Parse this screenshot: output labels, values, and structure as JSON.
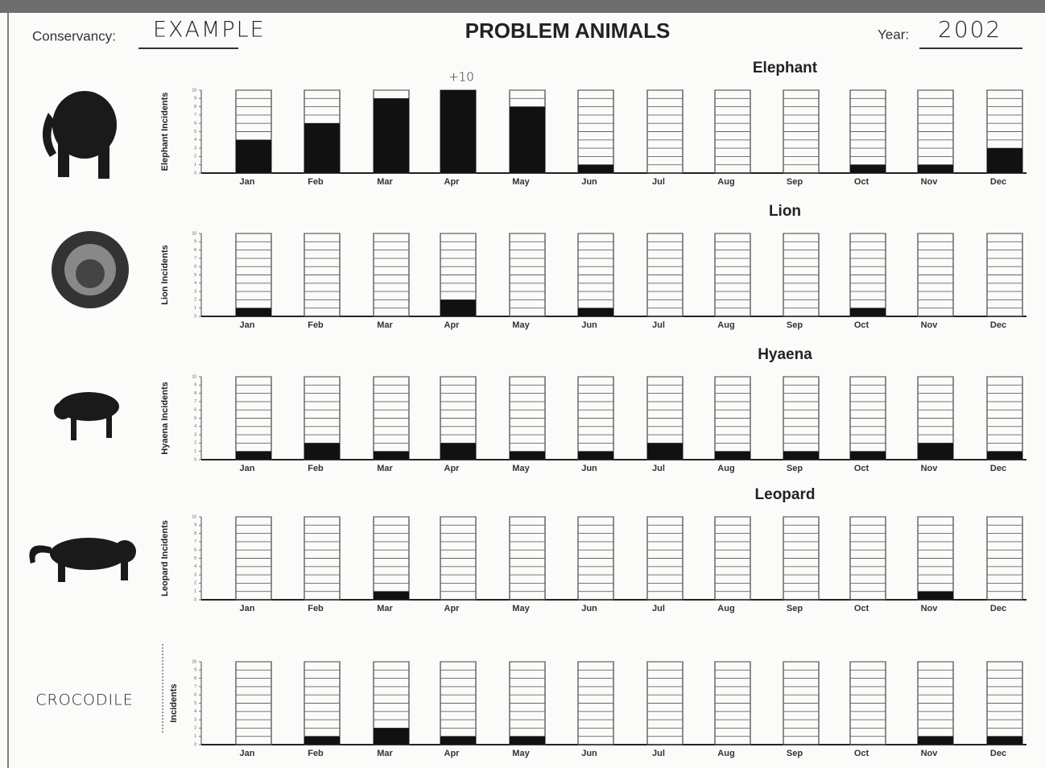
{
  "header": {
    "conservancy_label": "Conservancy:",
    "conservancy": "EXAMPLE",
    "title": "PROBLEM ANIMALS",
    "year_label": "Year:",
    "year": "2002"
  },
  "chart_data": [
    {
      "type": "bar",
      "title": "Elephant",
      "y_label": "Elephant Incidents",
      "categories": [
        "Jan",
        "Feb",
        "Mar",
        "Apr",
        "May",
        "Jun",
        "Jul",
        "Aug",
        "Sep",
        "Oct",
        "Nov",
        "Dec"
      ],
      "values": [
        4,
        6,
        9,
        10,
        8,
        1,
        0,
        0,
        0,
        1,
        1,
        3
      ],
      "color": "#111111",
      "ylim": [
        0,
        10
      ],
      "yticks": [
        0,
        1,
        2,
        3,
        4,
        5,
        6,
        7,
        8,
        9,
        10
      ],
      "grid": true,
      "annotations": [
        {
          "text": "+10",
          "category": "Apr"
        }
      ]
    },
    {
      "type": "bar",
      "title": "Lion",
      "y_label": "Lion Incidents",
      "categories": [
        "Jan",
        "Feb",
        "Mar",
        "Apr",
        "May",
        "Jun",
        "Jul",
        "Aug",
        "Sep",
        "Oct",
        "Nov",
        "Dec"
      ],
      "values": [
        1,
        0,
        0,
        2,
        0,
        1,
        0,
        0,
        0,
        1,
        0,
        0
      ],
      "color": "#111111",
      "ylim": [
        0,
        10
      ],
      "yticks": [
        0,
        1,
        2,
        3,
        4,
        5,
        6,
        7,
        8,
        9,
        10
      ],
      "grid": true
    },
    {
      "type": "bar",
      "title": "Hyaena",
      "y_label": "Hyaena Incidents",
      "categories": [
        "Jan",
        "Feb",
        "Mar",
        "Apr",
        "May",
        "Jun",
        "Jul",
        "Aug",
        "Sep",
        "Oct",
        "Nov",
        "Dec"
      ],
      "values": [
        1,
        2,
        1,
        2,
        1,
        1,
        2,
        1,
        1,
        1,
        2,
        1
      ],
      "color": "#111111",
      "ylim": [
        0,
        10
      ],
      "yticks": [
        0,
        1,
        2,
        3,
        4,
        5,
        6,
        7,
        8,
        9,
        10
      ],
      "grid": true
    },
    {
      "type": "bar",
      "title": "Leopard",
      "y_label": "Leopard Incidents",
      "categories": [
        "Jan",
        "Feb",
        "Mar",
        "Apr",
        "May",
        "Jun",
        "Jul",
        "Aug",
        "Sep",
        "Oct",
        "Nov",
        "Dec"
      ],
      "values": [
        0,
        0,
        1,
        0,
        0,
        0,
        0,
        0,
        0,
        0,
        1,
        0
      ],
      "color": "#111111",
      "ylim": [
        0,
        10
      ],
      "yticks": [
        0,
        1,
        2,
        3,
        4,
        5,
        6,
        7,
        8,
        9,
        10
      ],
      "grid": true
    },
    {
      "type": "bar",
      "animal_label": "CROCODILE",
      "y_label": "Incidents",
      "categories": [
        "Jan",
        "Feb",
        "Mar",
        "Apr",
        "May",
        "Jun",
        "Jul",
        "Aug",
        "Sep",
        "Oct",
        "Nov",
        "Dec"
      ],
      "values": [
        0,
        1,
        2,
        1,
        1,
        0,
        0,
        0,
        0,
        0,
        1,
        1
      ],
      "color": "#111111",
      "ylim": [
        0,
        10
      ],
      "yticks": [
        0,
        1,
        2,
        3,
        4,
        5,
        6,
        7,
        8,
        9,
        10
      ],
      "grid": true
    }
  ]
}
